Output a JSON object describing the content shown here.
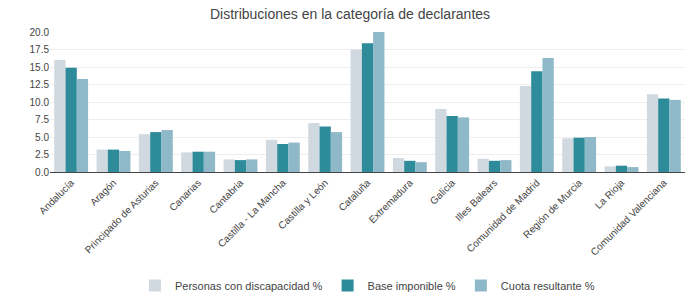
{
  "chart_data": {
    "type": "bar",
    "title": "Distribuciones en la categoría de declarantes",
    "categories": [
      "Andalucía",
      "Aragón",
      "Principado de Asturias",
      "Canarias",
      "Cantabria",
      "Castilla - La Mancha",
      "Castilla y León",
      "Cataluña",
      "Extremadura",
      "Galicia",
      "Illes Balears",
      "Comunidad de Madrid",
      "Región de Murcia",
      "La Rioja",
      "Comunidad Valenciana"
    ],
    "series": [
      {
        "name": "Personas con discapacidad %",
        "color": "#d0d8e0",
        "values": [
          16.0,
          3.2,
          5.4,
          2.8,
          1.8,
          4.6,
          7.0,
          17.5,
          2.0,
          9.0,
          1.9,
          12.3,
          4.8,
          0.8,
          11.1
        ]
      },
      {
        "name": "Base imponible %",
        "color": "#2e8b9a",
        "values": [
          14.9,
          3.2,
          5.7,
          2.9,
          1.7,
          4.0,
          6.5,
          18.4,
          1.6,
          8.0,
          1.6,
          14.4,
          4.9,
          0.9,
          10.5
        ]
      },
      {
        "name": "Cuota resultante %",
        "color": "#8fb8c8",
        "values": [
          13.3,
          3.0,
          6.0,
          2.9,
          1.8,
          4.2,
          5.7,
          20.0,
          1.4,
          7.8,
          1.7,
          16.3,
          5.0,
          0.7,
          10.3
        ]
      }
    ],
    "ylim": [
      0,
      20.0
    ],
    "yticks": [
      {
        "value": 0.0,
        "label": "0.0"
      },
      2.5,
      {
        "value": 5.0,
        "label": "5.0"
      },
      7.5,
      {
        "value": 10.0,
        "label": "10.0"
      },
      12.5,
      {
        "value": 15.0,
        "label": "15.0"
      },
      17.5,
      {
        "value": 20.0,
        "label": "20.0"
      }
    ],
    "grid": true,
    "legend": "bottom"
  }
}
